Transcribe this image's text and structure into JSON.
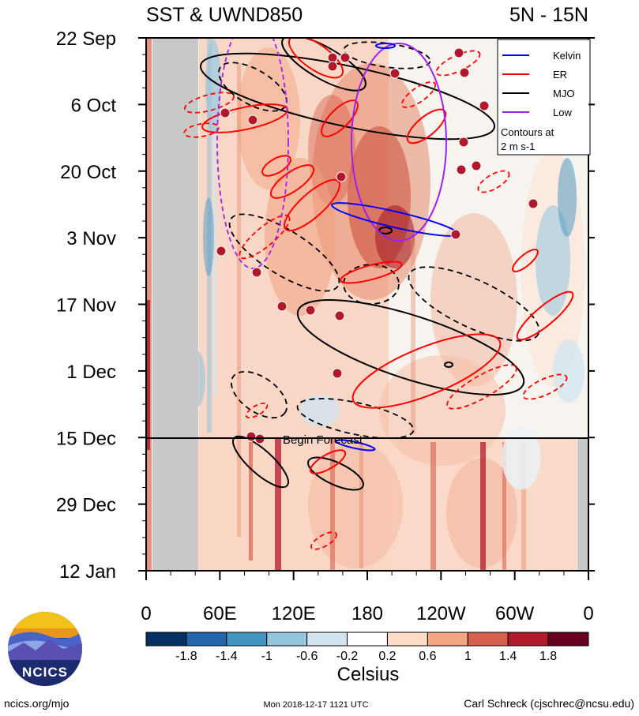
{
  "header": {
    "title_left": "SST & UWND850",
    "title_right": "5N - 15N"
  },
  "chart_data": {
    "type": "heatmap",
    "title": "SST & UWND850",
    "subtitle": "5N - 15N",
    "y_ticks": [
      "22 Sep",
      "6 Oct",
      "20 Oct",
      "3 Nov",
      "17 Nov",
      "1 Dec",
      "15 Dec",
      "29 Dec",
      "12 Jan"
    ],
    "x_ticks": [
      "0",
      "60E",
      "120E",
      "180",
      "120W",
      "60W",
      "0"
    ],
    "x_range_deg": [
      0,
      360
    ],
    "forecast_label": "Begin Forecast",
    "forecast_date": "15 Dec",
    "colorbar": {
      "label": "Celsius",
      "ticks": [
        "-1.8",
        "-1.4",
        "-1",
        "-0.6",
        "-0.2",
        "0.2",
        "0.6",
        "1",
        "1.4",
        "1.8"
      ],
      "colors": [
        "#053061",
        "#2166ac",
        "#4393c3",
        "#92c5de",
        "#d1e5f0",
        "#ffffff",
        "#fddbc7",
        "#f4a582",
        "#d6604d",
        "#b2182b",
        "#67001f"
      ]
    },
    "legend": {
      "entries": [
        {
          "name": "Kelvin",
          "color": "#0000ff"
        },
        {
          "name": "ER",
          "color": "#ff0000"
        },
        {
          "name": "MJO",
          "color": "#000000"
        },
        {
          "name": "Low",
          "color": "#a020f0"
        }
      ],
      "note_line1": "Contours at",
      "note_line2": "2 m s-1"
    }
  },
  "footer": {
    "left": "ncics.org/mjo",
    "center": "Mon 2018-12-17 1121 UTC",
    "right": "Carl Schreck (cjschrec@ncsu.edu)",
    "logo_text": "NCICS"
  }
}
